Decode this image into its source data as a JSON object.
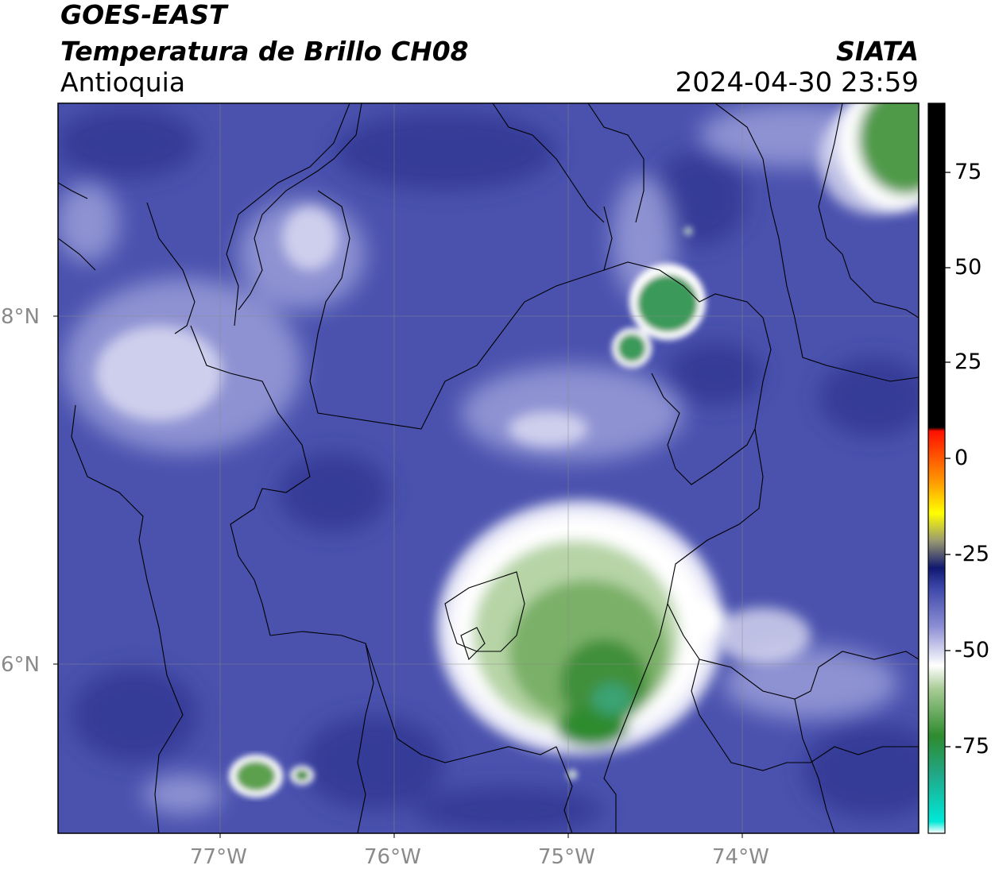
{
  "header": {
    "satellite": "GOES-EAST",
    "product": "Temperatura de Brillo CH08",
    "region": "Antioquia",
    "source": "SIATA",
    "datetime": "2024-04-30 23:59"
  },
  "axes": {
    "lon_labels": [
      "77°W",
      "76°W",
      "75°W",
      "74°W"
    ],
    "lat_labels": [
      "8°N",
      "6°N"
    ]
  },
  "colorbar": {
    "ticks": [
      "75",
      "50",
      "25",
      "0",
      "-25",
      "-50",
      "-75"
    ],
    "range": [
      -95,
      92
    ],
    "stops": [
      {
        "v": -95,
        "color": "#ffffff"
      },
      {
        "v": -92,
        "color": "#00e8d8"
      },
      {
        "v": -80,
        "color": "#20a888"
      },
      {
        "v": -70,
        "color": "#2e8b2e"
      },
      {
        "v": -58,
        "color": "#a8cc96"
      },
      {
        "v": -52,
        "color": "#ffffff"
      },
      {
        "v": -42,
        "color": "#8c8ed4"
      },
      {
        "v": -32,
        "color": "#3c46a8"
      },
      {
        "v": -27,
        "color": "#101870"
      },
      {
        "v": -20,
        "color": "#9a9a70"
      },
      {
        "v": -13,
        "color": "#ffff00"
      },
      {
        "v": -5,
        "color": "#ff9a00"
      },
      {
        "v": 8,
        "color": "#ff1000"
      },
      {
        "v": 9,
        "color": "#000000"
      },
      {
        "v": 92,
        "color": "#000000"
      }
    ]
  }
}
